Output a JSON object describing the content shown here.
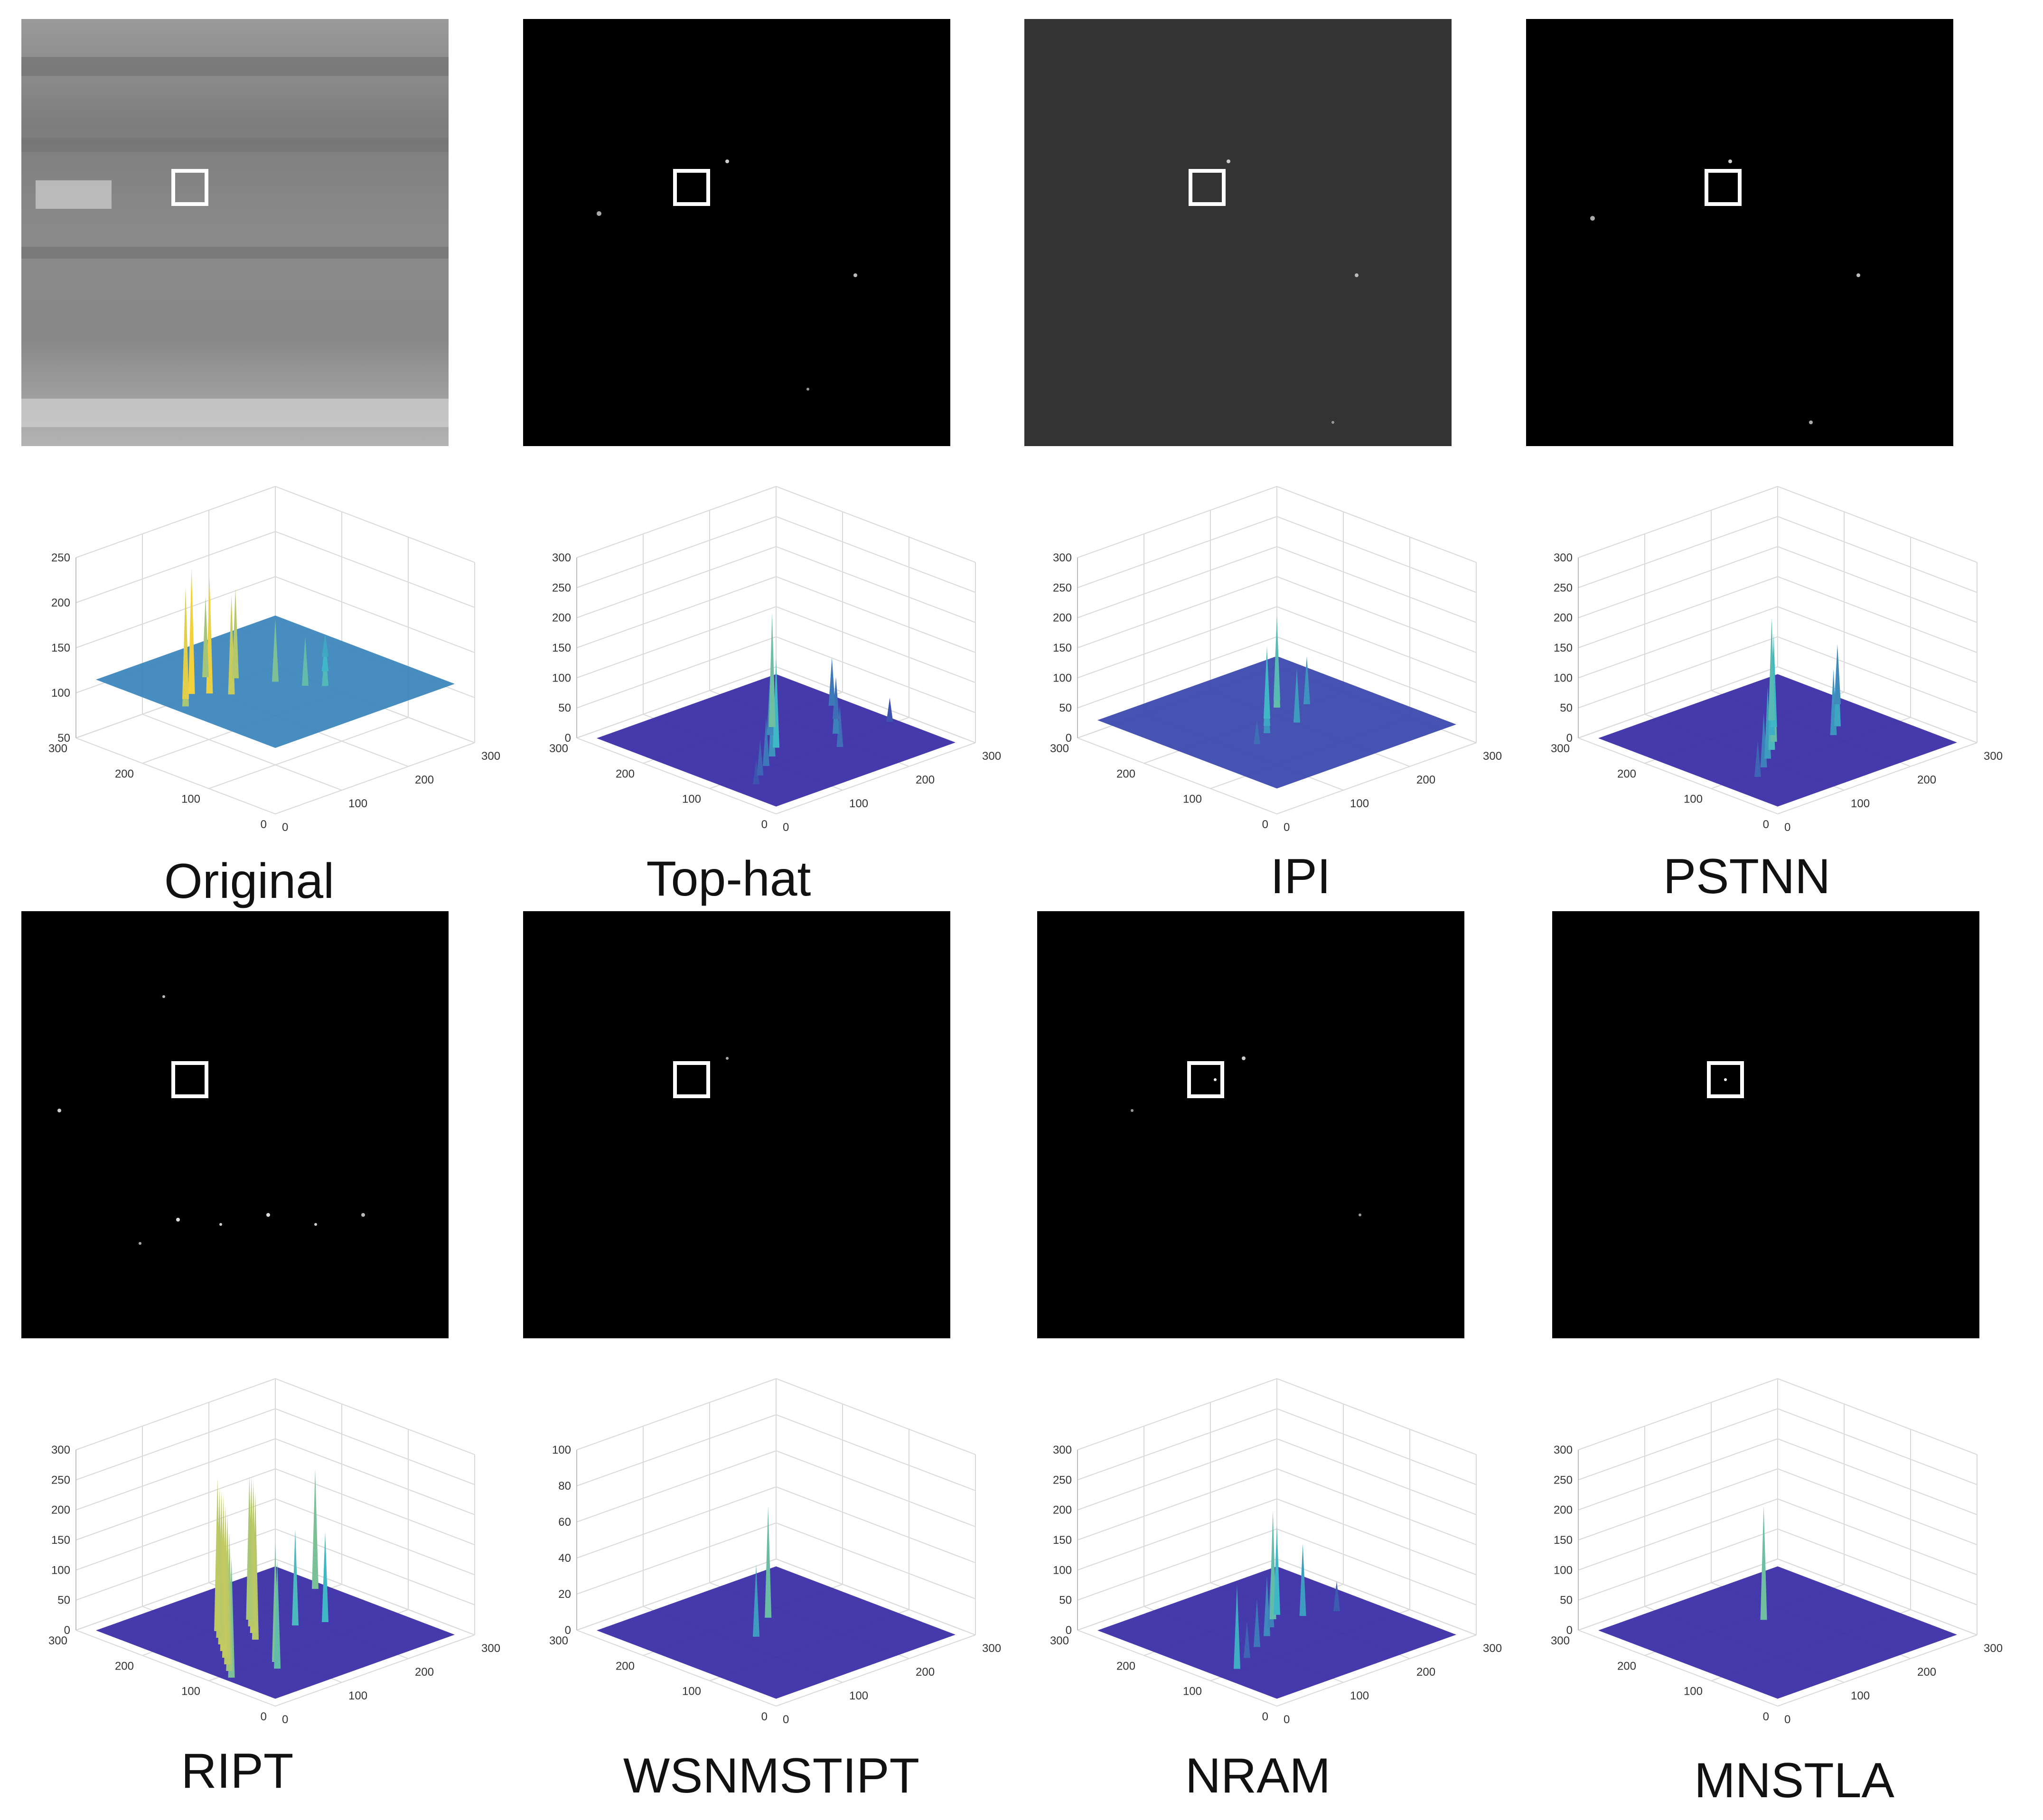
{
  "figure": {
    "labels": [
      "Original",
      "Top-hat",
      "IPI",
      "PSTNN",
      "RIPT",
      "WSNMSTIPT",
      "NRAM",
      "MNSTLA"
    ]
  },
  "colors": {
    "background": "#ffffff",
    "image_dark": "#000000",
    "image_gray": "#333333",
    "box": "#ffffff",
    "surface_low": "#3b2fa8",
    "surface_mid": "#3fb7c6",
    "surface_high": "#f4d13a",
    "grid": "#d9d9d9"
  },
  "chart_data": [
    {
      "type": "surface3d",
      "panel": "Original",
      "x_ticks": [
        0,
        100,
        200,
        300
      ],
      "y_ticks": [
        0,
        100,
        200,
        300
      ],
      "z_ticks": [
        50,
        100,
        150,
        200,
        250
      ],
      "zlim": [
        50,
        250
      ],
      "grid": true,
      "base": 115,
      "spikes": [
        [
          0.1,
          0.55,
          210
        ],
        [
          0.15,
          0.6,
          240
        ],
        [
          0.2,
          0.62,
          255
        ],
        [
          0.25,
          0.58,
          245
        ],
        [
          0.3,
          0.52,
          225
        ],
        [
          0.35,
          0.7,
          205
        ],
        [
          0.42,
          0.62,
          215
        ],
        [
          0.5,
          0.5,
          185
        ],
        [
          0.55,
          0.4,
          170
        ],
        [
          0.6,
          0.35,
          160
        ],
        [
          0.7,
          0.45,
          150
        ],
        [
          0.8,
          0.55,
          140
        ]
      ]
    },
    {
      "type": "surface3d",
      "panel": "Top-hat",
      "x_ticks": [
        0,
        100,
        200,
        300
      ],
      "y_ticks": [
        0,
        100,
        200,
        300
      ],
      "z_ticks": [
        0,
        50,
        100,
        150,
        200,
        250,
        300
      ],
      "zlim": [
        0,
        300
      ],
      "grid": true,
      "base": 0,
      "spikes": [
        [
          0.15,
          0.25,
          40
        ],
        [
          0.22,
          0.3,
          60
        ],
        [
          0.3,
          0.35,
          80
        ],
        [
          0.38,
          0.4,
          110
        ],
        [
          0.45,
          0.45,
          150
        ],
        [
          0.52,
          0.55,
          100
        ],
        [
          0.58,
          0.6,
          190
        ],
        [
          0.62,
          0.3,
          70
        ],
        [
          0.7,
          0.4,
          90
        ],
        [
          0.8,
          0.5,
          70
        ],
        [
          0.88,
          0.6,
          80
        ],
        [
          0.92,
          0.35,
          40
        ]
      ]
    },
    {
      "type": "surface3d",
      "panel": "IPI",
      "x_ticks": [
        0,
        100,
        200,
        300
      ],
      "y_ticks": [
        0,
        100,
        200,
        300
      ],
      "z_ticks": [
        0,
        50,
        100,
        150,
        200,
        250,
        300
      ],
      "zlim": [
        0,
        300
      ],
      "grid": true,
      "base": 30,
      "spikes": [
        [
          0.4,
          0.45,
          110
        ],
        [
          0.45,
          0.5,
          130
        ],
        [
          0.5,
          0.55,
          150
        ],
        [
          0.55,
          0.45,
          120
        ],
        [
          0.6,
          0.6,
          180
        ],
        [
          0.65,
          0.65,
          170
        ],
        [
          0.7,
          0.55,
          110
        ],
        [
          0.3,
          0.4,
          70
        ]
      ]
    },
    {
      "type": "surface3d",
      "panel": "PSTNN",
      "x_ticks": [
        0,
        100,
        200,
        300
      ],
      "y_ticks": [
        0,
        100,
        200,
        300
      ],
      "z_ticks": [
        0,
        50,
        100,
        150,
        200,
        250,
        300
      ],
      "zlim": [
        0,
        300
      ],
      "grid": true,
      "base": 0,
      "spikes": [
        [
          0.2,
          0.3,
          60
        ],
        [
          0.28,
          0.35,
          90
        ],
        [
          0.35,
          0.4,
          120
        ],
        [
          0.42,
          0.45,
          160
        ],
        [
          0.48,
          0.5,
          180
        ],
        [
          0.52,
          0.55,
          140
        ],
        [
          0.58,
          0.6,
          150
        ],
        [
          0.62,
          0.65,
          170
        ],
        [
          0.68,
          0.4,
          110
        ],
        [
          0.75,
          0.45,
          130
        ],
        [
          0.9,
          0.6,
          100
        ]
      ]
    },
    {
      "type": "surface3d",
      "panel": "RIPT",
      "x_ticks": [
        0,
        100,
        200,
        300
      ],
      "y_ticks": [
        0,
        100,
        200,
        300
      ],
      "z_ticks": [
        0,
        50,
        100,
        150,
        200,
        250,
        300
      ],
      "zlim": [
        0,
        300
      ],
      "grid": true,
      "base": 0,
      "spikes": [
        [
          0.08,
          0.3,
          200
        ],
        [
          0.12,
          0.35,
          230
        ],
        [
          0.16,
          0.4,
          250
        ],
        [
          0.2,
          0.45,
          255
        ],
        [
          0.24,
          0.5,
          260
        ],
        [
          0.28,
          0.55,
          255
        ],
        [
          0.32,
          0.6,
          250
        ],
        [
          0.36,
          0.65,
          255
        ],
        [
          0.4,
          0.5,
          245
        ],
        [
          0.44,
          0.55,
          255
        ],
        [
          0.48,
          0.6,
          250
        ],
        [
          0.52,
          0.65,
          240
        ],
        [
          0.3,
          0.3,
          200
        ],
        [
          0.26,
          0.25,
          180
        ],
        [
          0.6,
          0.5,
          160
        ],
        [
          0.7,
          0.45,
          150
        ],
        [
          0.9,
          0.7,
          200
        ]
      ]
    },
    {
      "type": "surface3d",
      "panel": "WSNMSTIPT",
      "x_ticks": [
        0,
        100,
        200,
        300
      ],
      "y_ticks": [
        0,
        100,
        200,
        300
      ],
      "z_ticks": [
        0,
        20,
        40,
        60,
        80,
        100
      ],
      "zlim": [
        0,
        100
      ],
      "grid": true,
      "base": 0,
      "spikes": [
        [
          0.42,
          0.52,
          40
        ],
        [
          0.58,
          0.62,
          62
        ]
      ]
    },
    {
      "type": "surface3d",
      "panel": "NRAM",
      "x_ticks": [
        0,
        100,
        200,
        300
      ],
      "y_ticks": [
        0,
        100,
        200,
        300
      ],
      "z_ticks": [
        0,
        50,
        100,
        150,
        200,
        250,
        300
      ],
      "zlim": [
        0,
        300
      ],
      "grid": true,
      "base": 0,
      "spikes": [
        [
          0.15,
          0.35,
          140
        ],
        [
          0.25,
          0.4,
          60
        ],
        [
          0.35,
          0.45,
          80
        ],
        [
          0.45,
          0.5,
          100
        ],
        [
          0.52,
          0.55,
          90
        ],
        [
          0.58,
          0.6,
          180
        ],
        [
          0.62,
          0.62,
          150
        ],
        [
          0.68,
          0.55,
          120
        ],
        [
          0.8,
          0.5,
          50
        ]
      ]
    },
    {
      "type": "surface3d",
      "panel": "MNSTLA",
      "x_ticks": [
        0,
        100,
        200,
        300
      ],
      "y_ticks": [
        0,
        100,
        200,
        300
      ],
      "z_ticks": [
        0,
        50,
        100,
        150,
        200,
        250,
        300
      ],
      "zlim": [
        0,
        300
      ],
      "grid": true,
      "base": 0,
      "spikes": [
        [
          0.55,
          0.62,
          190
        ]
      ]
    }
  ]
}
